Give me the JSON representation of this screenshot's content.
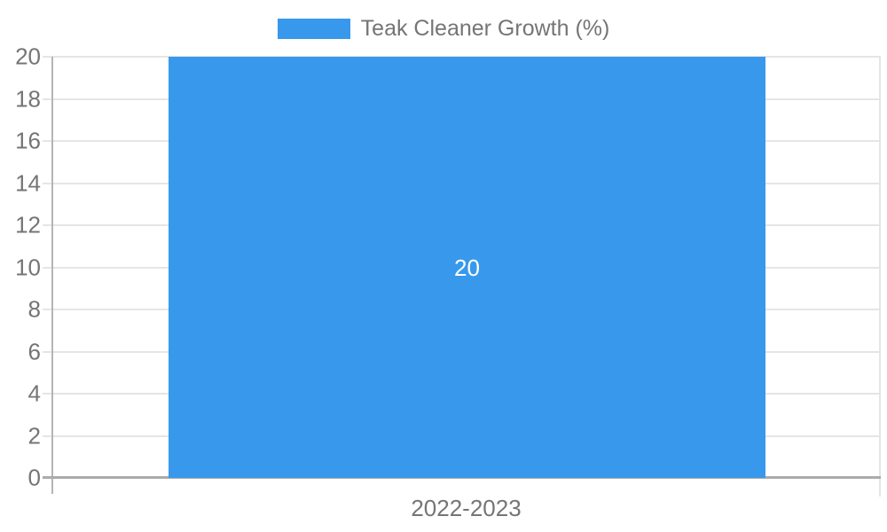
{
  "chart_data": {
    "type": "bar",
    "title": "",
    "categories": [
      "2022-2023"
    ],
    "series": [
      {
        "name": "Teak Cleaner Growth (%)",
        "values": [
          20
        ]
      }
    ],
    "xlabel": "",
    "ylabel": "",
    "ylim": [
      0,
      20
    ],
    "ytick_step": 2,
    "yticks": [
      20,
      18,
      16,
      14,
      12,
      10,
      8,
      6,
      4,
      2,
      0
    ],
    "legend_position": "top",
    "grid": true,
    "bar_label": "20",
    "bar_label_position": "center",
    "colors": {
      "bar": "#3899EC",
      "gridline": "#E5E5E5",
      "y_axis_line": "#B5B5B5",
      "x_axis_line": "#ABABAB",
      "text": "#757575",
      "bar_label_text": "#FFFFFF",
      "background": "#FFFFFF"
    }
  }
}
